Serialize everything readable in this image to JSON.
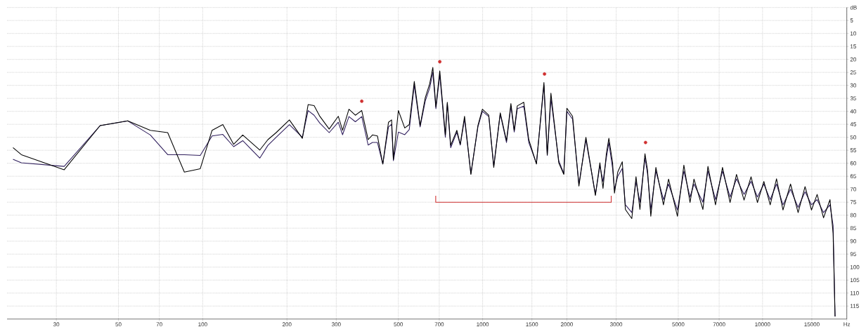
{
  "chart_data": {
    "type": "line",
    "log": "x",
    "grid": true,
    "xlim": [
      20,
      20000
    ],
    "ylim": [
      120,
      0
    ],
    "xticks": [
      30,
      50,
      70,
      100,
      200,
      300,
      500,
      700,
      1000,
      1500,
      2000,
      3000,
      5000,
      7000,
      10000,
      15000,
      {
        "value": 20000,
        "label": "Hz"
      }
    ],
    "yticks": [
      {
        "value": 0,
        "label": "dB"
      },
      5,
      10,
      15,
      20,
      25,
      30,
      35,
      40,
      45,
      50,
      55,
      60,
      65,
      70,
      75,
      80,
      85,
      90,
      95,
      100,
      105,
      110,
      115
    ],
    "series": [
      {
        "color": "#2e1d5c",
        "x": [
          21,
          22.5,
          32,
          43,
          54,
          65,
          75,
          86,
          98,
          108,
          118,
          129,
          139,
          160,
          171,
          183,
          204,
          227,
          238,
          250,
          262,
          283,
          305,
          316,
          333,
          351,
          370,
          390,
          404,
          421,
          440,
          461,
          473,
          480,
          500,
          527,
          547,
          570,
          598,
          624,
          647,
          664,
          681,
          703,
          736,
          748,
          769,
          809,
          832,
          862,
          908,
          962,
          998,
          1052,
          1096,
          1156,
          1217,
          1262,
          1297,
          1330,
          1403,
          1462,
          1557,
          1656,
          1702,
          1754,
          1871,
          1950,
          2000,
          2096,
          2208,
          2339,
          2529,
          2624,
          2692,
          2767,
          2825,
          2913,
          2958,
          3039,
          3155,
          3236,
          3412,
          3532,
          3648,
          3802,
          3882,
          3990,
          4159,
          4426,
          4616,
          4966,
          5236,
          5508,
          5689,
          6124,
          6383,
          6792,
          7194,
          7656,
          8072,
          8590,
          9099,
          9590,
          10110,
          10650,
          11220,
          11830,
          12590,
          13400,
          14190,
          14960,
          15670,
          16520,
          17420,
          17870,
          18160
        ],
        "values": [
          58.5,
          59.8,
          61.2,
          45.5,
          43.7,
          49.1,
          56.7,
          56.7,
          57,
          49.5,
          48.9,
          53.6,
          51.3,
          58,
          53.1,
          50,
          45.1,
          50,
          39.7,
          41.5,
          44.5,
          48.2,
          44.2,
          49,
          42,
          44,
          42,
          53,
          52,
          52,
          60.3,
          46,
          45,
          59,
          48,
          49,
          47,
          30,
          46,
          36,
          31,
          25,
          39,
          26,
          50,
          37,
          54,
          48,
          53,
          43,
          64,
          46,
          40,
          42,
          61,
          41,
          52,
          38,
          48,
          39,
          38,
          52,
          60,
          30,
          57,
          35,
          59,
          64,
          40,
          43,
          68,
          51,
          72,
          61,
          67,
          58,
          52,
          62,
          70,
          65,
          62,
          76,
          79,
          67,
          75,
          58,
          64,
          78,
          63,
          74,
          68,
          78,
          63,
          73,
          68,
          75,
          63,
          74,
          63,
          73,
          66,
          72,
          67,
          73,
          68,
          74,
          68,
          76,
          70,
          77,
          71,
          76,
          74,
          79,
          76,
          84,
          119
        ]
      },
      {
        "color": "#000000",
        "x": [
          21,
          22.5,
          32,
          43,
          54,
          65,
          75,
          86,
          98,
          108,
          118,
          129,
          139,
          160,
          171,
          183,
          204,
          227,
          238,
          250,
          262,
          283,
          305,
          316,
          333,
          351,
          370,
          390,
          404,
          421,
          440,
          461,
          473,
          480,
          500,
          527,
          547,
          570,
          598,
          624,
          647,
          664,
          681,
          703,
          736,
          748,
          769,
          809,
          832,
          862,
          908,
          962,
          998,
          1052,
          1096,
          1156,
          1217,
          1262,
          1297,
          1330,
          1403,
          1462,
          1557,
          1656,
          1702,
          1754,
          1871,
          1950,
          2000,
          2096,
          2208,
          2339,
          2529,
          2624,
          2692,
          2767,
          2825,
          2913,
          2958,
          3039,
          3155,
          3236,
          3412,
          3532,
          3648,
          3802,
          3882,
          3990,
          4159,
          4426,
          4616,
          4966,
          5236,
          5508,
          5689,
          6124,
          6383,
          6792,
          7194,
          7656,
          8072,
          8590,
          9099,
          9590,
          10110,
          10650,
          11220,
          11830,
          12590,
          13400,
          14190,
          14960,
          15670,
          16520,
          17420,
          17870,
          18160
        ],
        "values": [
          54,
          56.7,
          62.5,
          45.5,
          43.7,
          47.3,
          48.2,
          63.4,
          62.1,
          47.3,
          45.1,
          52.7,
          49.1,
          54.9,
          50.9,
          48.2,
          43.3,
          50.4,
          37.4,
          37.8,
          41.9,
          46.8,
          41.9,
          47.3,
          39.2,
          41.5,
          39.7,
          50.9,
          49.1,
          49.5,
          60.3,
          44.2,
          43.3,
          58.5,
          39.7,
          46.4,
          45.1,
          28.5,
          45.5,
          34.7,
          29.4,
          23.1,
          38.3,
          24.4,
          49.1,
          36.5,
          53.1,
          47.3,
          52.7,
          41.9,
          64.3,
          45.5,
          39.2,
          41.5,
          61.6,
          40.6,
          51.3,
          37,
          47.3,
          37.9,
          36.5,
          50.9,
          60.3,
          28.9,
          56.7,
          33,
          59.8,
          64.3,
          38.8,
          41.9,
          68.8,
          50,
          72.4,
          59.8,
          69.7,
          56.3,
          50.4,
          59.8,
          71.5,
          63.4,
          59.4,
          77.8,
          81.3,
          65.2,
          77.8,
          56.3,
          62.5,
          80.4,
          61.6,
          76,
          66.1,
          80.4,
          60.7,
          75.1,
          66.1,
          77.8,
          61.2,
          76,
          61.6,
          75.1,
          64.3,
          74.2,
          65.2,
          75.1,
          67,
          76,
          66,
          78,
          68,
          79,
          69,
          78,
          72,
          81,
          74,
          87,
          119
        ]
      },
      {
        "type": "scatter",
        "marker": "circle",
        "color": "#d03030",
        "x": [
          370,
          703,
          1664,
          3820
        ],
        "values": [
          36.1,
          20.9,
          25.6,
          52
        ]
      },
      {
        "color": "#d03030",
        "x": [
          680,
          680,
          2880,
          2880
        ],
        "values": [
          72.5,
          75,
          75,
          72.5
        ]
      }
    ]
  }
}
